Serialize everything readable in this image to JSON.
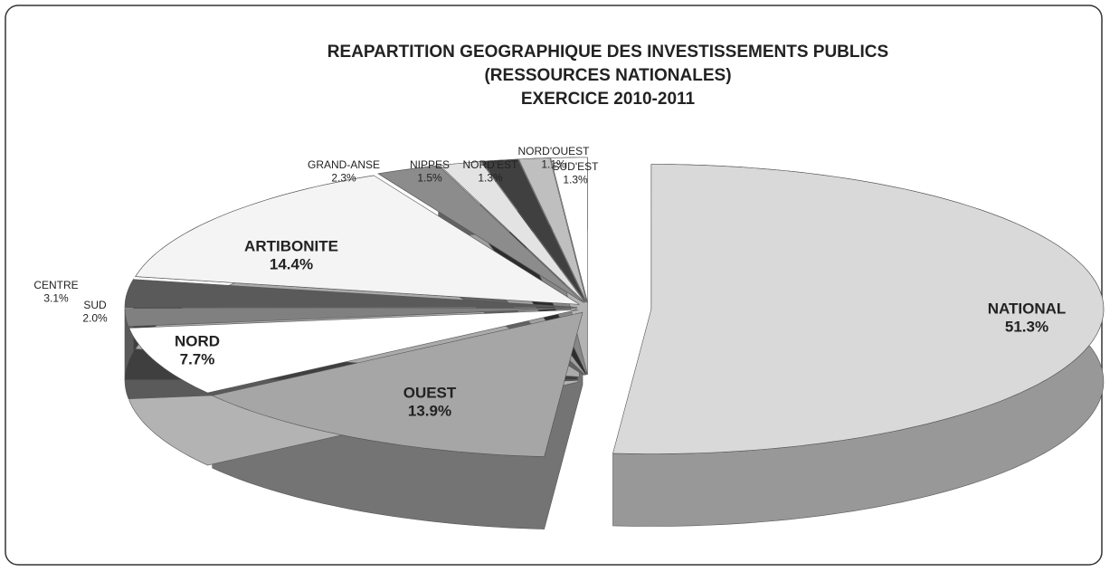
{
  "chart_data": {
    "type": "pie",
    "title": [
      "REAPARTITION GEOGRAPHIQUE DES INVESTISSEMENTS PUBLICS",
      "(RESSOURCES NATIONALES)",
      "EXERCICE 2010-2011"
    ],
    "categories": [
      "NATIONAL",
      "OUEST",
      "NORD",
      "SUD",
      "CENTRE",
      "ARTIBONITE",
      "GRAND-ANSE",
      "NIPPES",
      "NORD'EST",
      "NORD'OUEST",
      "SUD'EST"
    ],
    "values": [
      51.3,
      13.9,
      7.7,
      2.0,
      3.1,
      14.4,
      2.3,
      1.5,
      1.3,
      1.1,
      1.3
    ],
    "value_labels": [
      "51.3%",
      "13.9%",
      "7.7%",
      "2.0%",
      "3.1%",
      "14.4%",
      "2.3%",
      "1.5%",
      "1.3%",
      "1.1%",
      "1.3%"
    ],
    "colors": [
      "#d9d9d9",
      "#a6a6a6",
      "#ffffff",
      "#808080",
      "#5a5a5a",
      "#f4f4f4",
      "#8c8c8c",
      "#e3e3e3",
      "#404040",
      "#bfbfbf",
      "#ffffff"
    ]
  }
}
